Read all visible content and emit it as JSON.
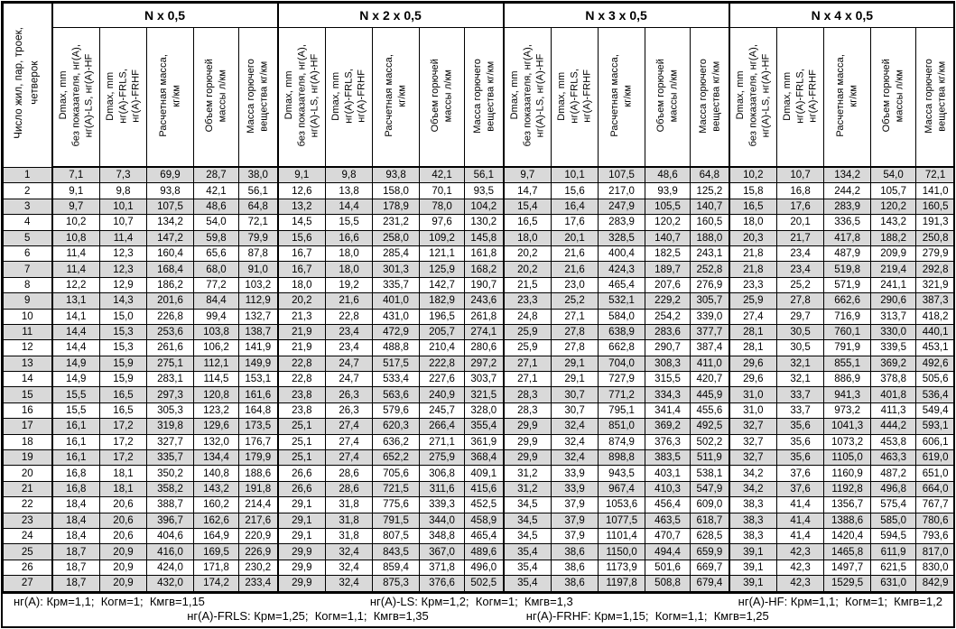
{
  "table": {
    "corner_header": "Число жил, пар, троек,\nчетверок",
    "groups": [
      {
        "title": "N x 0,5"
      },
      {
        "title": "N x 2 x 0,5"
      },
      {
        "title": "N x 3 x 0,5"
      },
      {
        "title": "N x 4 x 0,5"
      }
    ],
    "sub_headers": [
      "Dmax, mm\nбез показателя, нг(А),\nнг(А)-LS, нг(А)-HF",
      "Dmax, mm\nнг(А)-FRLS,\nнг(А)-FRHF",
      "Расчетная масса,\nкг/км",
      "Объем горючей\nмассы л/км",
      "Масса горючего\nвещества кг/км"
    ],
    "rows": [
      {
        "n": "1",
        "values": [
          [
            "7,1",
            "7,3",
            "69,9",
            "28,7",
            "38,0"
          ],
          [
            "9,1",
            "9,8",
            "93,8",
            "42,1",
            "56,1"
          ],
          [
            "9,7",
            "10,1",
            "107,5",
            "48,6",
            "64,8"
          ],
          [
            "10,2",
            "10,7",
            "134,2",
            "54,0",
            "72,1"
          ]
        ]
      },
      {
        "n": "2",
        "values": [
          [
            "9,1",
            "9,8",
            "93,8",
            "42,1",
            "56,1"
          ],
          [
            "12,6",
            "13,8",
            "158,0",
            "70,1",
            "93,5"
          ],
          [
            "14,7",
            "15,6",
            "217,0",
            "93,9",
            "125,2"
          ],
          [
            "15,8",
            "16,8",
            "244,2",
            "105,7",
            "141,0"
          ]
        ]
      },
      {
        "n": "3",
        "values": [
          [
            "9,7",
            "10,1",
            "107,5",
            "48,6",
            "64,8"
          ],
          [
            "13,2",
            "14,4",
            "178,9",
            "78,0",
            "104,2"
          ],
          [
            "15,4",
            "16,4",
            "247,9",
            "105,5",
            "140,7"
          ],
          [
            "16,5",
            "17,6",
            "283,9",
            "120,2",
            "160,5"
          ]
        ]
      },
      {
        "n": "4",
        "values": [
          [
            "10,2",
            "10,7",
            "134,2",
            "54,0",
            "72,1"
          ],
          [
            "14,5",
            "15,5",
            "231,2",
            "97,6",
            "130,2"
          ],
          [
            "16,5",
            "17,6",
            "283,9",
            "120,2",
            "160,5"
          ],
          [
            "18,0",
            "20,1",
            "336,5",
            "143,2",
            "191,3"
          ]
        ]
      },
      {
        "n": "5",
        "values": [
          [
            "10,8",
            "11,4",
            "147,2",
            "59,8",
            "79,9"
          ],
          [
            "15,6",
            "16,6",
            "258,0",
            "109,2",
            "145,8"
          ],
          [
            "18,0",
            "20,1",
            "328,5",
            "140,7",
            "188,0"
          ],
          [
            "20,3",
            "21,7",
            "417,8",
            "188,2",
            "250,8"
          ]
        ]
      },
      {
        "n": "6",
        "values": [
          [
            "11,4",
            "12,3",
            "160,4",
            "65,6",
            "87,8"
          ],
          [
            "16,7",
            "18,0",
            "285,4",
            "121,1",
            "161,8"
          ],
          [
            "20,2",
            "21,6",
            "400,4",
            "182,5",
            "243,1"
          ],
          [
            "21,8",
            "23,4",
            "487,9",
            "209,9",
            "279,9"
          ]
        ]
      },
      {
        "n": "7",
        "values": [
          [
            "11,4",
            "12,3",
            "168,4",
            "68,0",
            "91,0"
          ],
          [
            "16,7",
            "18,0",
            "301,3",
            "125,9",
            "168,2"
          ],
          [
            "20,2",
            "21,6",
            "424,3",
            "189,7",
            "252,8"
          ],
          [
            "21,8",
            "23,4",
            "519,8",
            "219,4",
            "292,8"
          ]
        ]
      },
      {
        "n": "8",
        "values": [
          [
            "12,2",
            "12,9",
            "186,2",
            "77,2",
            "103,2"
          ],
          [
            "18,0",
            "19,2",
            "335,7",
            "142,7",
            "190,7"
          ],
          [
            "21,5",
            "23,0",
            "465,4",
            "207,6",
            "276,9"
          ],
          [
            "23,3",
            "25,2",
            "571,9",
            "241,1",
            "321,9"
          ]
        ]
      },
      {
        "n": "9",
        "values": [
          [
            "13,1",
            "14,3",
            "201,6",
            "84,4",
            "112,9"
          ],
          [
            "20,2",
            "21,6",
            "401,0",
            "182,9",
            "243,6"
          ],
          [
            "23,3",
            "25,2",
            "532,1",
            "229,2",
            "305,7"
          ],
          [
            "25,9",
            "27,8",
            "662,6",
            "290,6",
            "387,3"
          ]
        ]
      },
      {
        "n": "10",
        "values": [
          [
            "14,1",
            "15,0",
            "226,8",
            "99,4",
            "132,7"
          ],
          [
            "21,3",
            "22,8",
            "431,0",
            "196,5",
            "261,8"
          ],
          [
            "24,8",
            "27,1",
            "584,0",
            "254,2",
            "339,0"
          ],
          [
            "27,4",
            "29,7",
            "716,9",
            "313,7",
            "418,2"
          ]
        ]
      },
      {
        "n": "11",
        "values": [
          [
            "14,4",
            "15,3",
            "253,6",
            "103,8",
            "138,7"
          ],
          [
            "21,9",
            "23,4",
            "472,9",
            "205,7",
            "274,1"
          ],
          [
            "25,9",
            "27,8",
            "638,9",
            "283,6",
            "377,7"
          ],
          [
            "28,1",
            "30,5",
            "760,1",
            "330,0",
            "440,1"
          ]
        ]
      },
      {
        "n": "12",
        "values": [
          [
            "14,4",
            "15,3",
            "261,6",
            "106,2",
            "141,9"
          ],
          [
            "21,9",
            "23,4",
            "488,8",
            "210,4",
            "280,6"
          ],
          [
            "25,9",
            "27,8",
            "662,8",
            "290,7",
            "387,4"
          ],
          [
            "28,1",
            "30,5",
            "791,9",
            "339,5",
            "453,1"
          ]
        ]
      },
      {
        "n": "13",
        "values": [
          [
            "14,9",
            "15,9",
            "275,1",
            "112,1",
            "149,9"
          ],
          [
            "22,8",
            "24,7",
            "517,5",
            "222,8",
            "297,2"
          ],
          [
            "27,1",
            "29,1",
            "704,0",
            "308,3",
            "411,0"
          ],
          [
            "29,6",
            "32,1",
            "855,1",
            "369,2",
            "492,6"
          ]
        ]
      },
      {
        "n": "14",
        "values": [
          [
            "14,9",
            "15,9",
            "283,1",
            "114,5",
            "153,1"
          ],
          [
            "22,8",
            "24,7",
            "533,4",
            "227,6",
            "303,7"
          ],
          [
            "27,1",
            "29,1",
            "727,9",
            "315,5",
            "420,7"
          ],
          [
            "29,6",
            "32,1",
            "886,9",
            "378,8",
            "505,6"
          ]
        ]
      },
      {
        "n": "15",
        "values": [
          [
            "15,5",
            "16,5",
            "297,3",
            "120,8",
            "161,6"
          ],
          [
            "23,8",
            "26,3",
            "563,6",
            "240,9",
            "321,5"
          ],
          [
            "28,3",
            "30,7",
            "771,2",
            "334,3",
            "445,9"
          ],
          [
            "31,0",
            "33,7",
            "941,3",
            "401,8",
            "536,4"
          ]
        ]
      },
      {
        "n": "16",
        "values": [
          [
            "15,5",
            "16,5",
            "305,3",
            "123,2",
            "164,8"
          ],
          [
            "23,8",
            "26,3",
            "579,6",
            "245,7",
            "328,0"
          ],
          [
            "28,3",
            "30,7",
            "795,1",
            "341,4",
            "455,6"
          ],
          [
            "31,0",
            "33,7",
            "973,2",
            "411,3",
            "549,4"
          ]
        ]
      },
      {
        "n": "17",
        "values": [
          [
            "16,1",
            "17,2",
            "319,8",
            "129,6",
            "173,5"
          ],
          [
            "25,1",
            "27,4",
            "620,3",
            "266,4",
            "355,4"
          ],
          [
            "29,9",
            "32,4",
            "851,0",
            "369,2",
            "492,5"
          ],
          [
            "32,7",
            "35,6",
            "1041,3",
            "444,2",
            "593,1"
          ]
        ]
      },
      {
        "n": "18",
        "values": [
          [
            "16,1",
            "17,2",
            "327,7",
            "132,0",
            "176,7"
          ],
          [
            "25,1",
            "27,4",
            "636,2",
            "271,1",
            "361,9"
          ],
          [
            "29,9",
            "32,4",
            "874,9",
            "376,3",
            "502,2"
          ],
          [
            "32,7",
            "35,6",
            "1073,2",
            "453,8",
            "606,1"
          ]
        ]
      },
      {
        "n": "19",
        "values": [
          [
            "16,1",
            "17,2",
            "335,7",
            "134,4",
            "179,9"
          ],
          [
            "25,1",
            "27,4",
            "652,2",
            "275,9",
            "368,4"
          ],
          [
            "29,9",
            "32,4",
            "898,8",
            "383,5",
            "511,9"
          ],
          [
            "32,7",
            "35,6",
            "1105,0",
            "463,3",
            "619,0"
          ]
        ]
      },
      {
        "n": "20",
        "values": [
          [
            "16,8",
            "18,1",
            "350,2",
            "140,8",
            "188,6"
          ],
          [
            "26,6",
            "28,6",
            "705,6",
            "306,8",
            "409,1"
          ],
          [
            "31,2",
            "33,9",
            "943,5",
            "403,1",
            "538,1"
          ],
          [
            "34,2",
            "37,6",
            "1160,9",
            "487,2",
            "651,0"
          ]
        ]
      },
      {
        "n": "21",
        "values": [
          [
            "16,8",
            "18,1",
            "358,2",
            "143,2",
            "191,8"
          ],
          [
            "26,6",
            "28,6",
            "721,5",
            "311,6",
            "415,6"
          ],
          [
            "31,2",
            "33,9",
            "967,4",
            "410,3",
            "547,9"
          ],
          [
            "34,2",
            "37,6",
            "1192,8",
            "496,8",
            "664,0"
          ]
        ]
      },
      {
        "n": "22",
        "values": [
          [
            "18,4",
            "20,6",
            "388,7",
            "160,2",
            "214,4"
          ],
          [
            "29,1",
            "31,8",
            "775,6",
            "339,3",
            "452,5"
          ],
          [
            "34,5",
            "37,9",
            "1053,6",
            "456,4",
            "609,0"
          ],
          [
            "38,3",
            "41,4",
            "1356,7",
            "575,4",
            "767,7"
          ]
        ]
      },
      {
        "n": "23",
        "values": [
          [
            "18,4",
            "20,6",
            "396,7",
            "162,6",
            "217,6"
          ],
          [
            "29,1",
            "31,8",
            "791,5",
            "344,0",
            "458,9"
          ],
          [
            "34,5",
            "37,9",
            "1077,5",
            "463,5",
            "618,7"
          ],
          [
            "38,3",
            "41,4",
            "1388,6",
            "585,0",
            "780,6"
          ]
        ]
      },
      {
        "n": "24",
        "values": [
          [
            "18,4",
            "20,6",
            "404,6",
            "164,9",
            "220,9"
          ],
          [
            "29,1",
            "31,8",
            "807,5",
            "348,8",
            "465,4"
          ],
          [
            "34,5",
            "37,9",
            "1101,4",
            "470,7",
            "628,5"
          ],
          [
            "38,3",
            "41,4",
            "1420,4",
            "594,5",
            "793,6"
          ]
        ]
      },
      {
        "n": "25",
        "values": [
          [
            "18,7",
            "20,9",
            "416,0",
            "169,5",
            "226,9"
          ],
          [
            "29,9",
            "32,4",
            "843,5",
            "367,0",
            "489,6"
          ],
          [
            "35,4",
            "38,6",
            "1150,0",
            "494,4",
            "659,9"
          ],
          [
            "39,1",
            "42,3",
            "1465,8",
            "611,9",
            "817,0"
          ]
        ]
      },
      {
        "n": "26",
        "values": [
          [
            "18,7",
            "20,9",
            "424,0",
            "171,8",
            "230,2"
          ],
          [
            "29,9",
            "32,4",
            "859,4",
            "371,8",
            "496,0"
          ],
          [
            "35,4",
            "38,6",
            "1173,9",
            "501,6",
            "669,7"
          ],
          [
            "39,1",
            "42,3",
            "1497,7",
            "621,5",
            "830,0"
          ]
        ]
      },
      {
        "n": "27",
        "values": [
          [
            "18,7",
            "20,9",
            "432,0",
            "174,2",
            "233,4"
          ],
          [
            "29,9",
            "32,4",
            "875,3",
            "376,6",
            "502,5"
          ],
          [
            "35,4",
            "38,6",
            "1197,8",
            "508,8",
            "679,4"
          ],
          [
            "39,1",
            "42,3",
            "1529,5",
            "631,0",
            "842,9"
          ]
        ]
      }
    ]
  },
  "footer": {
    "line1": [
      "нг(А): Крм=1,1;  Когм=1;  Кмгв=1,15",
      "нг(А)-LS: Крм=1,2;  Когм=1;  Кмгв=1,3",
      "нг(А)-HF: Крм=1,1;  Когм=1;  Кмгв=1,2"
    ],
    "line2": [
      "нг(А)-FRLS: Крм=1,25;  Когм=1,1;  Кмгв=1,35",
      "нг(А)-FRHF: Крм=1,15;  Когм=1,1;  Кмгв=1,25"
    ]
  },
  "colors": {
    "stripe": "#d9d9d9",
    "border": "#000000",
    "background": "#ffffff"
  }
}
